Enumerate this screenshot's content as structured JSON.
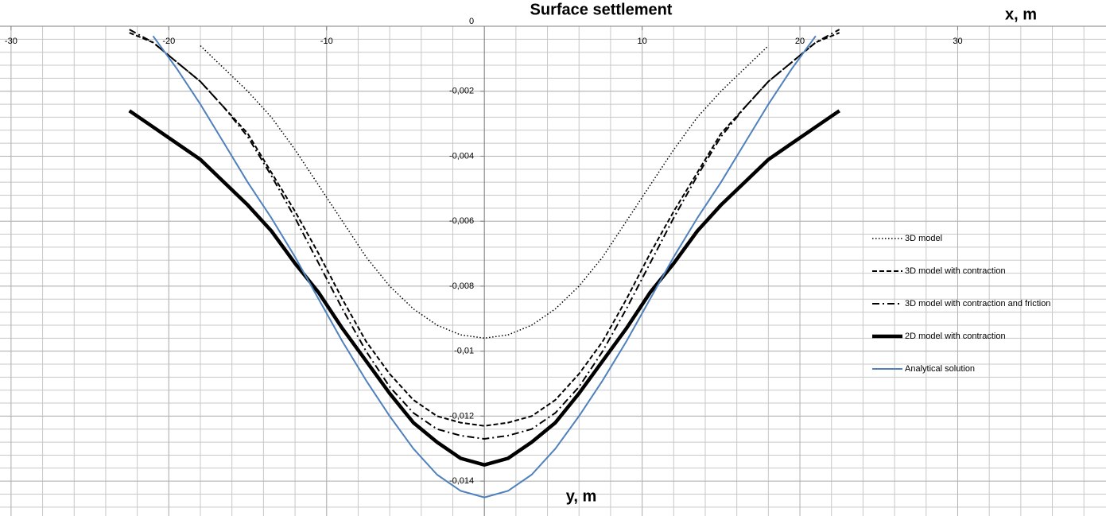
{
  "chart_data": {
    "type": "line",
    "title": "Surface settlement",
    "xlabel": "x, m",
    "ylabel": "y, m",
    "x": [
      -22.5,
      -21,
      -19.5,
      -18,
      -16.5,
      -15,
      -13.5,
      -12,
      -10.5,
      -9,
      -7.5,
      -6,
      -4.5,
      -3,
      -1.5,
      0,
      1.5,
      3,
      4.5,
      6,
      7.5,
      9,
      10.5,
      12,
      13.5,
      15,
      16.5,
      18,
      19.5,
      21,
      22.5
    ],
    "series": [
      {
        "name": "3D model",
        "color": "#000000",
        "style": "dotted",
        "width": 1.5,
        "values": [
          null,
          null,
          null,
          -0.0006,
          -0.0013,
          -0.002,
          -0.0028,
          -0.0038,
          -0.0049,
          -0.006,
          -0.0071,
          -0.008,
          -0.0087,
          -0.0092,
          -0.0095,
          -0.0096,
          -0.0095,
          -0.0092,
          -0.0087,
          -0.008,
          -0.0071,
          -0.006,
          -0.0049,
          -0.0038,
          -0.0028,
          -0.002,
          -0.0013,
          -0.0006,
          null,
          null,
          null
        ]
      },
      {
        "name": "3D model with contraction",
        "color": "#000000",
        "style": "dashed",
        "width": 2,
        "values": [
          -0.0002,
          -0.0005,
          -0.0011,
          -0.0017,
          -0.0025,
          -0.0033,
          -0.0045,
          -0.0057,
          -0.007,
          -0.0084,
          -0.0097,
          -0.0107,
          -0.0115,
          -0.012,
          -0.0122,
          -0.0123,
          -0.0122,
          -0.012,
          -0.0115,
          -0.0107,
          -0.0097,
          -0.0084,
          -0.007,
          -0.0057,
          -0.0045,
          -0.0033,
          -0.0025,
          -0.0017,
          -0.0011,
          -0.0005,
          -0.0002
        ]
      },
      {
        "name": "3D model with contraction and friction",
        "color": "#000000",
        "style": "dashdot",
        "width": 2,
        "values": [
          -0.0001,
          -0.0005,
          -0.0011,
          -0.0017,
          -0.0025,
          -0.0034,
          -0.0046,
          -0.0059,
          -0.0073,
          -0.0087,
          -0.01,
          -0.0111,
          -0.0119,
          -0.0124,
          -0.0126,
          -0.0127,
          -0.0126,
          -0.0124,
          -0.0119,
          -0.0111,
          -0.01,
          -0.0087,
          -0.0073,
          -0.0059,
          -0.0046,
          -0.0034,
          -0.0025,
          -0.0017,
          -0.0011,
          -0.0005,
          -0.0001
        ]
      },
      {
        "name": "2D model with contraction",
        "color": "#000000",
        "style": "solid",
        "width": 4.5,
        "values": [
          -0.0026,
          -0.0031,
          -0.0036,
          -0.0041,
          -0.0048,
          -0.0055,
          -0.0063,
          -0.0073,
          -0.0082,
          -0.0093,
          -0.0103,
          -0.0113,
          -0.0122,
          -0.0128,
          -0.0133,
          -0.0135,
          -0.0133,
          -0.0128,
          -0.0122,
          -0.0113,
          -0.0103,
          -0.0093,
          -0.0082,
          -0.0073,
          -0.0063,
          -0.0055,
          -0.0048,
          -0.0041,
          -0.0036,
          -0.0031,
          -0.0026
        ]
      },
      {
        "name": "Analytical solution",
        "color": "#4f81bd",
        "style": "solid",
        "width": 2,
        "values": [
          null,
          -0.0003,
          -0.0013,
          -0.0024,
          -0.0036,
          -0.0048,
          -0.0059,
          -0.0071,
          -0.0084,
          -0.0097,
          -0.0109,
          -0.012,
          -0.013,
          -0.0138,
          -0.0143,
          -0.0145,
          -0.0143,
          -0.0138,
          -0.013,
          -0.012,
          -0.0109,
          -0.0097,
          -0.0084,
          -0.0071,
          -0.0059,
          -0.0048,
          -0.0036,
          -0.0024,
          -0.0013,
          -0.0003,
          null
        ]
      }
    ],
    "xlim": [
      -30.7,
      39.4
    ],
    "ylim": [
      -0.015,
      0
    ],
    "xticks": [
      -30,
      -20,
      -10,
      10,
      20,
      30
    ],
    "yticks": [
      0,
      {
        "value": -0.002,
        "label": "-0,002"
      },
      {
        "value": -0.004,
        "label": "-0,004"
      },
      {
        "value": -0.006,
        "label": "-0,006"
      },
      {
        "value": -0.008,
        "label": "-0,008"
      },
      {
        "value": -0.01,
        "label": "-0,01"
      },
      {
        "value": -0.012,
        "label": "-0,012"
      },
      {
        "value": -0.014,
        "label": "-0,014"
      }
    ],
    "grid": true,
    "legend": "right"
  }
}
